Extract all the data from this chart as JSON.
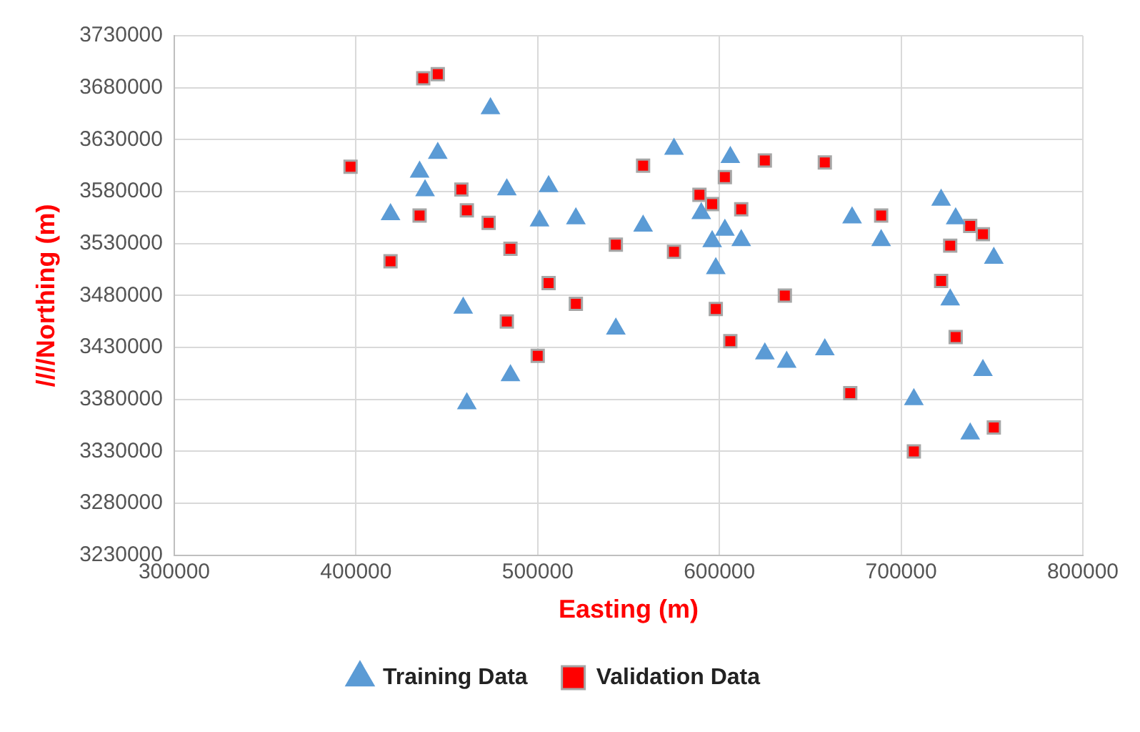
{
  "chart_data": {
    "type": "scatter",
    "xlabel": "Easting (m)",
    "ylabel": "////Northing (m)",
    "xlim": [
      300000,
      800000
    ],
    "xticks": [
      300000,
      400000,
      500000,
      600000,
      700000,
      800000
    ],
    "ylim": [
      3230000,
      3730000
    ],
    "yticks": [
      3230000,
      3280000,
      3330000,
      3380000,
      3430000,
      3480000,
      3530000,
      3580000,
      3630000,
      3680000,
      3730000
    ],
    "grid": true,
    "legend": "bottom",
    "series": [
      {
        "name": "Training Data",
        "color": "#5b9bd5",
        "marker": "triangle",
        "x": [
          474000,
          445000,
          435000,
          438000,
          419000,
          483000,
          506000,
          501000,
          521000,
          558000,
          459000,
          543000,
          485000,
          461000,
          575000,
          606000,
          590000,
          603000,
          596000,
          612000,
          598000,
          673000,
          689000,
          722000,
          730000,
          751000,
          727000,
          625000,
          637000,
          658000,
          745000,
          707000,
          738000
        ],
        "values": [
          3660000,
          3617000,
          3599000,
          3581000,
          3558000,
          3582000,
          3585000,
          3552000,
          3554000,
          3547000,
          3468000,
          3448000,
          3403000,
          3376000,
          3621000,
          3613000,
          3559000,
          3543000,
          3532000,
          3533000,
          3506000,
          3555000,
          3533000,
          3572000,
          3554000,
          3516000,
          3476000,
          3424000,
          3416000,
          3428000,
          3408000,
          3380000,
          3347000
        ]
      },
      {
        "name": "Validation Data",
        "color": "#ff0000",
        "marker": "square",
        "x": [
          437000,
          445000,
          397000,
          558000,
          458000,
          461000,
          435000,
          473000,
          485000,
          543000,
          419000,
          506000,
          521000,
          483000,
          500000,
          625000,
          658000,
          603000,
          589000,
          596000,
          612000,
          575000,
          689000,
          738000,
          745000,
          727000,
          722000,
          636000,
          598000,
          606000,
          730000,
          672000,
          751000,
          707000
        ],
        "values": [
          3689000,
          3693000,
          3604000,
          3605000,
          3582000,
          3562000,
          3557000,
          3550000,
          3525000,
          3529000,
          3513000,
          3492000,
          3472000,
          3455000,
          3422000,
          3610000,
          3608000,
          3594000,
          3577000,
          3568000,
          3563000,
          3522000,
          3557000,
          3547000,
          3539000,
          3528000,
          3494000,
          3480000,
          3467000,
          3436000,
          3440000,
          3386000,
          3353000,
          3330000
        ]
      }
    ]
  }
}
